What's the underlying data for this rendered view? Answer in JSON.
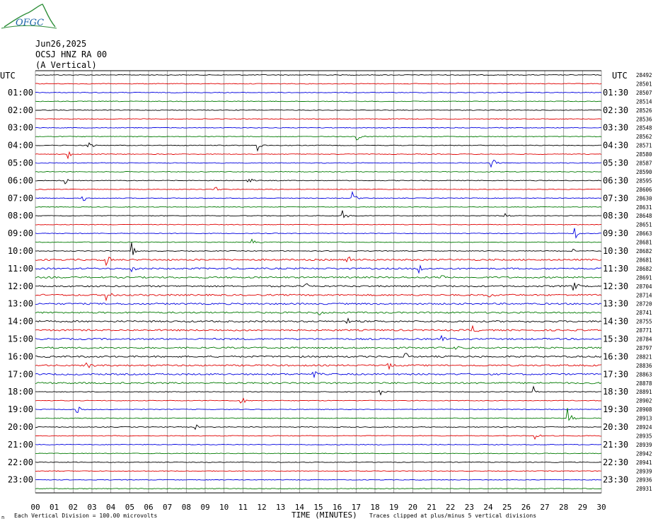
{
  "header": {
    "logo_text": "OFGC",
    "date": "Jun26,2025",
    "station": "OCSJ HNZ RA 00",
    "component": "(A Vertical)",
    "utc_left": "UTC",
    "utc_right": "UTC",
    "corner_mark": "n"
  },
  "footer": {
    "scale_note": "Each Vertical Division = 100.00 microvolts",
    "clip_note": "Traces clipped at plus/minus 5 vertical divisions",
    "x_title": "TIME (MINUTES)"
  },
  "colors": {
    "black": "#000000",
    "red": "#e00000",
    "blue": "#0000e0",
    "green": "#007a00",
    "grid": "#8c8c8c"
  },
  "chart_data": {
    "type": "line",
    "plot": "helicorder",
    "trace_color_cycle": [
      "black",
      "red",
      "blue",
      "green"
    ],
    "x_ticks": [
      "00",
      "01",
      "02",
      "03",
      "04",
      "05",
      "06",
      "07",
      "08",
      "09",
      "10",
      "11",
      "12",
      "13",
      "14",
      "15",
      "16",
      "17",
      "18",
      "19",
      "20",
      "21",
      "22",
      "23",
      "24",
      "25",
      "26",
      "27",
      "28",
      "29",
      "30"
    ],
    "xlim": [
      0,
      30
    ],
    "left_labels": [
      "01:00",
      "02:00",
      "03:00",
      "04:00",
      "05:00",
      "06:00",
      "07:00",
      "08:00",
      "09:00",
      "10:00",
      "11:00",
      "12:00",
      "13:00",
      "14:00",
      "15:00",
      "16:00",
      "17:00",
      "18:00",
      "19:00",
      "20:00",
      "21:00",
      "22:00",
      "23:00"
    ],
    "right_labels": [
      "01:30",
      "02:30",
      "03:30",
      "04:30",
      "05:30",
      "06:30",
      "07:30",
      "08:30",
      "09:30",
      "10:30",
      "11:30",
      "12:30",
      "13:30",
      "14:30",
      "15:30",
      "16:30",
      "17:30",
      "18:30",
      "19:30",
      "20:30",
      "21:30",
      "22:30",
      "23:30"
    ],
    "rms_values": [
      "28492",
      "28501",
      "28507",
      "28514",
      "28526",
      "28536",
      "28548",
      "28562",
      "28571",
      "28580",
      "28587",
      "28590",
      "28595",
      "28606",
      "28630",
      "28631",
      "28648",
      "28651",
      "28663",
      "28681",
      "28682",
      "28681",
      "28682",
      "28691",
      "28704",
      "28714",
      "28720",
      "28741",
      "28755",
      "28771",
      "28784",
      "28797",
      "28821",
      "28836",
      "28863",
      "28878",
      "28891",
      "28902",
      "28908",
      "28913",
      "28924",
      "28935",
      "28939",
      "28942",
      "28941",
      "28939",
      "28936",
      "28931"
    ],
    "events": [
      {
        "row": 8,
        "minute": 2.8,
        "amp": 10
      },
      {
        "row": 9,
        "minute": 1.7,
        "amp": 7
      },
      {
        "row": 8,
        "minute": 11.8,
        "amp": 8
      },
      {
        "row": 7,
        "minute": 17.0,
        "amp": 9
      },
      {
        "row": 10,
        "minute": 24.2,
        "amp": 8
      },
      {
        "row": 12,
        "minute": 11.2,
        "amp": 10
      },
      {
        "row": 12,
        "minute": 1.5,
        "amp": 8
      },
      {
        "row": 13,
        "minute": 9.5,
        "amp": 7
      },
      {
        "row": 14,
        "minute": 2.5,
        "amp": 7
      },
      {
        "row": 14,
        "minute": 16.8,
        "amp": 9
      },
      {
        "row": 16,
        "minute": 16.3,
        "amp": 9
      },
      {
        "row": 16,
        "minute": 24.8,
        "amp": 8
      },
      {
        "row": 18,
        "minute": 28.6,
        "amp": 8
      },
      {
        "row": 19,
        "minute": 11.5,
        "amp": 8
      },
      {
        "row": 20,
        "minute": 5.1,
        "amp": 12
      },
      {
        "row": 20,
        "minute": 28.4,
        "amp": 10
      },
      {
        "row": 21,
        "minute": 3.8,
        "amp": 8
      },
      {
        "row": 21,
        "minute": 16.5,
        "amp": 8
      },
      {
        "row": 22,
        "minute": 5.1,
        "amp": 9
      },
      {
        "row": 22,
        "minute": 20.3,
        "amp": 9
      },
      {
        "row": 23,
        "minute": 21.5,
        "amp": 9
      },
      {
        "row": 24,
        "minute": 14.3,
        "amp": 8
      },
      {
        "row": 24,
        "minute": 28.5,
        "amp": 10
      },
      {
        "row": 25,
        "minute": 3.8,
        "amp": 8
      },
      {
        "row": 25,
        "minute": 24.0,
        "amp": 7
      },
      {
        "row": 27,
        "minute": 15.0,
        "amp": 8
      },
      {
        "row": 28,
        "minute": 16.5,
        "amp": 8
      },
      {
        "row": 29,
        "minute": 23.2,
        "amp": 8
      },
      {
        "row": 30,
        "minute": 21.5,
        "amp": 9
      },
      {
        "row": 31,
        "minute": 22.3,
        "amp": 8
      },
      {
        "row": 32,
        "minute": 19.6,
        "amp": 7
      },
      {
        "row": 33,
        "minute": 2.7,
        "amp": 8
      },
      {
        "row": 33,
        "minute": 18.7,
        "amp": 9
      },
      {
        "row": 34,
        "minute": 14.7,
        "amp": 8
      },
      {
        "row": 36,
        "minute": 18.2,
        "amp": 12
      },
      {
        "row": 36,
        "minute": 26.4,
        "amp": 11
      },
      {
        "row": 37,
        "minute": 10.9,
        "amp": 8
      },
      {
        "row": 38,
        "minute": 2.2,
        "amp": 7
      },
      {
        "row": 39,
        "minute": 28.2,
        "amp": 22
      },
      {
        "row": 40,
        "minute": 8.5,
        "amp": 5
      },
      {
        "row": 41,
        "minute": 26.5,
        "amp": 6
      }
    ]
  }
}
